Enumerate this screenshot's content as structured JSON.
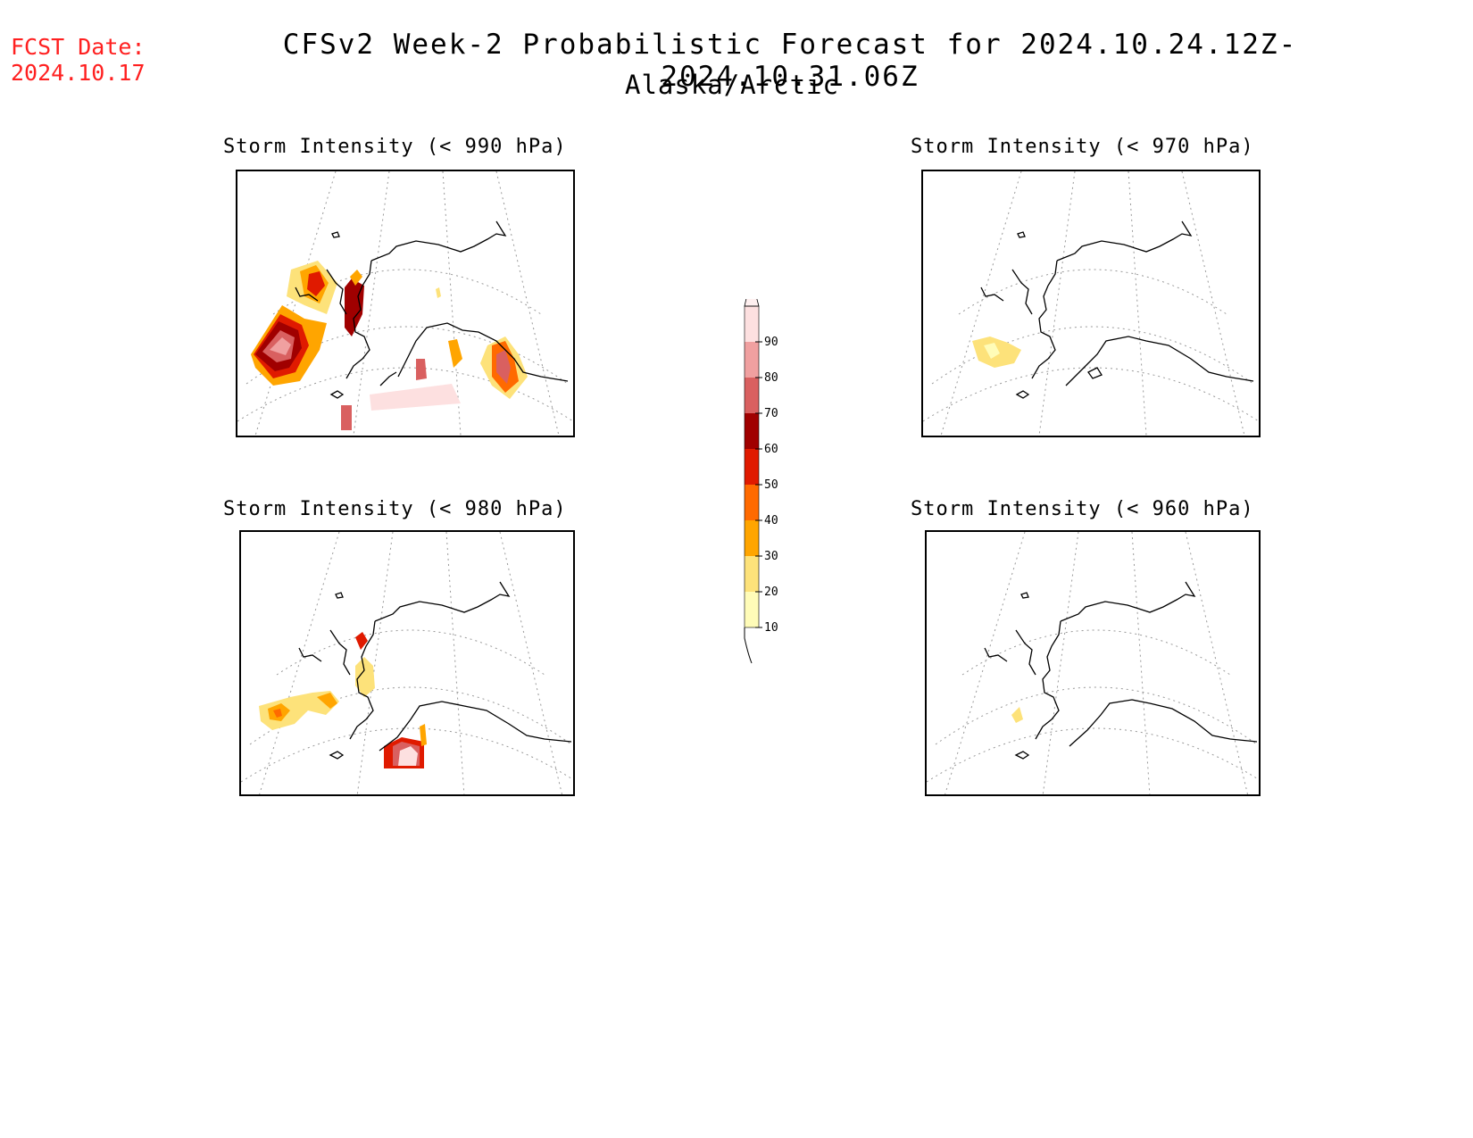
{
  "header": {
    "fcst_label": "FCST Date:",
    "fcst_date": "2024.10.17",
    "title": "CFSv2 Week-2 Probabilistic Forecast for 2024.10.24.12Z-2024.10.31.06Z",
    "subtitle": "Alaska/Arctic"
  },
  "panels": [
    {
      "id": "p990",
      "title": "Storm Intensity (< 990 hPa)"
    },
    {
      "id": "p970",
      "title": "Storm Intensity (< 970 hPa)"
    },
    {
      "id": "p980",
      "title": "Storm Intensity (< 980 hPa)"
    },
    {
      "id": "p960",
      "title": "Storm Intensity (< 960 hPa)"
    }
  ],
  "legend": {
    "levels": [
      "10",
      "20",
      "30",
      "40",
      "50",
      "60",
      "70",
      "80",
      "90"
    ],
    "colors": [
      "#fffcb8",
      "#fde27a",
      "#ffa500",
      "#ff6a00",
      "#e01a00",
      "#a00000",
      "#d96060",
      "#f0a0a0",
      "#fde0e0"
    ]
  }
}
